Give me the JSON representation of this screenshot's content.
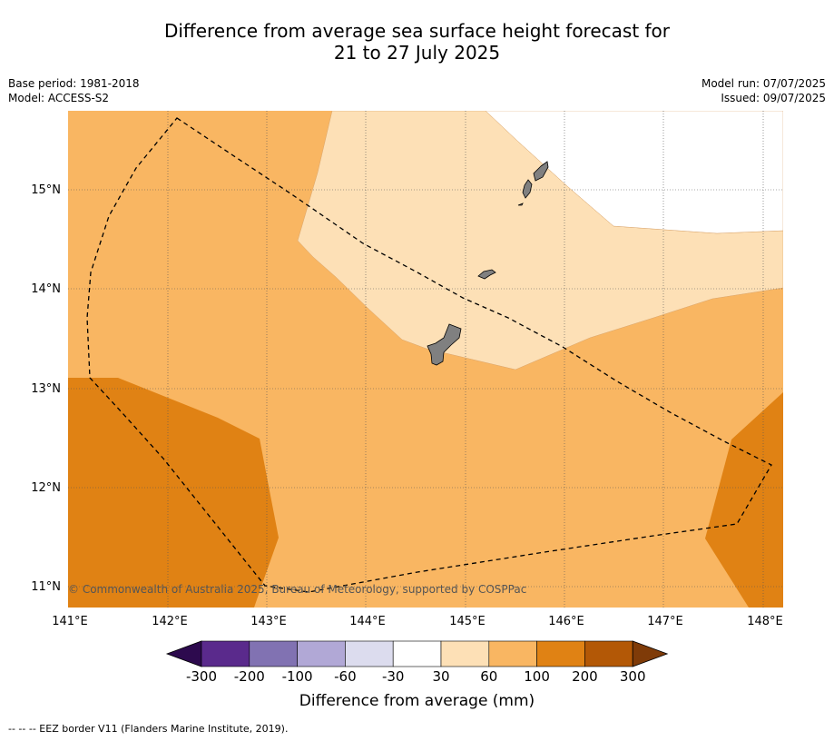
{
  "title": {
    "line1": "Difference from average sea surface height forecast for",
    "line2": "21 to 27 July 2025"
  },
  "meta_left": {
    "base_period": "Base period: 1981-2018",
    "model": "Model: ACCESS-S2"
  },
  "meta_right": {
    "model_run": "Model run: 07/07/2025",
    "issued": "Issued: 09/07/2025"
  },
  "map": {
    "lon_labels": [
      "141°E",
      "142°E",
      "143°E",
      "144°E",
      "145°E",
      "146°E",
      "147°E",
      "148°E"
    ],
    "lat_labels": [
      "15°N",
      "14°N",
      "13°N",
      "12°N",
      "11°N"
    ],
    "copyright": "© Commonwealth of Australia 2025, Bureau of Meteorology, supported by COSPPac"
  },
  "colorbar": {
    "tick_labels": [
      "-300",
      "-200",
      "-100",
      "-60",
      "-30",
      "30",
      "60",
      "100",
      "200",
      "300"
    ],
    "colors": [
      "#2d0a4e",
      "#5a2a8c",
      "#8172b2",
      "#b1a8d6",
      "#dcdcee",
      "#ffffff",
      "#fde0b6",
      "#f9b662",
      "#e08214",
      "#b35806",
      "#7f3b08"
    ],
    "title": "Difference from average (mm)"
  },
  "footnote": "--  --  -- EEZ border V11 (Flanders Marine Institute, 2019)."
}
